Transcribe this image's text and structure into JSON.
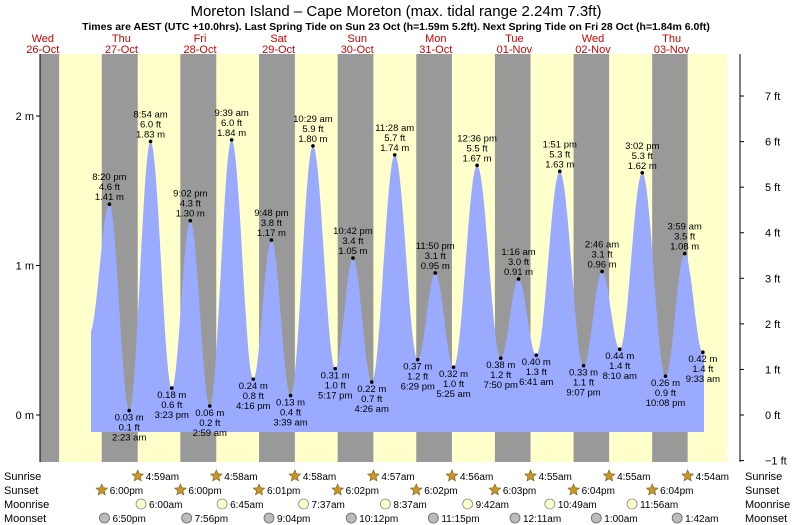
{
  "chart_data": {
    "type": "area",
    "title": "Moreton Island – Cape Moreton (max. tidal range 2.24m 7.3ft)",
    "subtitle": "Times are AEST (UTC +10.0hrs). Last Spring Tide on Sun 23 Oct (h=1.59m 5.2ft). Next Spring Tide on Fri 28 Oct (h=1.84m 6.0ft)",
    "colors": {
      "day": "#ffffcc",
      "night": "#999999",
      "tide": "#99aaff",
      "date": "#cc0000",
      "text": "#000000",
      "sun": "#c8962a",
      "moon": "#ffffcc",
      "moonset": "#bbbbbb"
    },
    "days": [
      {
        "dow": "Wed",
        "date": "26-Oct"
      },
      {
        "dow": "Thu",
        "date": "27-Oct"
      },
      {
        "dow": "Fri",
        "date": "28-Oct"
      },
      {
        "dow": "Sat",
        "date": "29-Oct"
      },
      {
        "dow": "Sun",
        "date": "30-Oct"
      },
      {
        "dow": "Mon",
        "date": "31-Oct"
      },
      {
        "dow": "Tue",
        "date": "01-Nov"
      },
      {
        "dow": "Wed",
        "date": "02-Nov"
      },
      {
        "dow": "Thu",
        "date": "03-Nov"
      }
    ],
    "y_left_ticks": [
      {
        "v": 0,
        "label": "0 m"
      },
      {
        "v": 1,
        "label": "1 m"
      },
      {
        "v": 2,
        "label": "2 m"
      }
    ],
    "y_right_ticks": [
      {
        "ft": -1,
        "label": "−1 ft"
      },
      {
        "ft": 0,
        "label": "0 ft"
      },
      {
        "ft": 1,
        "label": "1 ft"
      },
      {
        "ft": 2,
        "label": "2 ft"
      },
      {
        "ft": 3,
        "label": "3 ft"
      },
      {
        "ft": 4,
        "label": "4 ft"
      },
      {
        "ft": 5,
        "label": "5 ft"
      },
      {
        "ft": 6,
        "label": "6 ft"
      },
      {
        "ft": 7,
        "label": "7 ft"
      }
    ],
    "ylim": [
      -0.3,
      2.45
    ],
    "tides": [
      {
        "d": 0,
        "h": 20.333,
        "m": 1.41,
        "type": "high",
        "time": "8:20 pm",
        "ft": "4.6 ft",
        "mlabel": "1.41 m"
      },
      {
        "d": 1,
        "h": 2.383,
        "m": 0.03,
        "type": "low",
        "time": "2:23 am",
        "ft": "0.1 ft",
        "mlabel": "0.03 m"
      },
      {
        "d": 1,
        "h": 8.9,
        "m": 1.83,
        "type": "high",
        "time": "8:54 am",
        "ft": "6.0 ft",
        "mlabel": "1.83 m"
      },
      {
        "d": 1,
        "h": 15.383,
        "m": 0.18,
        "type": "low",
        "time": "3:23 pm",
        "ft": "0.6 ft",
        "mlabel": "0.18 m"
      },
      {
        "d": 1,
        "h": 21.033,
        "m": 1.3,
        "type": "high",
        "time": "9:02 pm",
        "ft": "4.3 ft",
        "mlabel": "1.30 m"
      },
      {
        "d": 2,
        "h": 2.983,
        "m": 0.06,
        "type": "low",
        "time": "2:59 am",
        "ft": "0.2 ft",
        "mlabel": "0.06 m"
      },
      {
        "d": 2,
        "h": 9.65,
        "m": 1.84,
        "type": "high",
        "time": "9:39 am",
        "ft": "6.0 ft",
        "mlabel": "1.84 m"
      },
      {
        "d": 2,
        "h": 16.267,
        "m": 0.24,
        "type": "low",
        "time": "4:16 pm",
        "ft": "0.8 ft",
        "mlabel": "0.24 m"
      },
      {
        "d": 2,
        "h": 21.8,
        "m": 1.17,
        "type": "high",
        "time": "9:48 pm",
        "ft": "3.8 ft",
        "mlabel": "1.17 m"
      },
      {
        "d": 3,
        "h": 3.65,
        "m": 0.13,
        "type": "low",
        "time": "3:39 am",
        "ft": "0.4 ft",
        "mlabel": "0.13 m"
      },
      {
        "d": 3,
        "h": 10.483,
        "m": 1.8,
        "type": "high",
        "time": "10:29 am",
        "ft": "5.9 ft",
        "mlabel": "1.80 m"
      },
      {
        "d": 3,
        "h": 17.283,
        "m": 0.31,
        "type": "low",
        "time": "5:17 pm",
        "ft": "1.0 ft",
        "mlabel": "0.31 m"
      },
      {
        "d": 3,
        "h": 22.7,
        "m": 1.05,
        "type": "high",
        "time": "10:42 pm",
        "ft": "3.4 ft",
        "mlabel": "1.05 m"
      },
      {
        "d": 4,
        "h": 4.433,
        "m": 0.22,
        "type": "low",
        "time": "4:26 am",
        "ft": "0.7 ft",
        "mlabel": "0.22 m"
      },
      {
        "d": 4,
        "h": 11.467,
        "m": 1.74,
        "type": "high",
        "time": "11:28 am",
        "ft": "5.7 ft",
        "mlabel": "1.74 m"
      },
      {
        "d": 4,
        "h": 18.483,
        "m": 0.37,
        "type": "low",
        "time": "6:29 pm",
        "ft": "1.2 ft",
        "mlabel": "0.37 m"
      },
      {
        "d": 4,
        "h": 23.833,
        "m": 0.95,
        "type": "high",
        "time": "11:50 pm",
        "ft": "3.1 ft",
        "mlabel": "0.95 m"
      },
      {
        "d": 5,
        "h": 5.417,
        "m": 0.32,
        "type": "low",
        "time": "5:25 am",
        "ft": "1.0 ft",
        "mlabel": "0.32 m"
      },
      {
        "d": 5,
        "h": 12.6,
        "m": 1.67,
        "type": "high",
        "time": "12:36 pm",
        "ft": "5.5 ft",
        "mlabel": "1.67 m"
      },
      {
        "d": 5,
        "h": 19.833,
        "m": 0.38,
        "type": "low",
        "time": "7:50 pm",
        "ft": "1.2 ft",
        "mlabel": "0.38 m"
      },
      {
        "d": 6,
        "h": 1.267,
        "m": 0.91,
        "type": "high",
        "time": "1:16 am",
        "ft": "3.0 ft",
        "mlabel": "0.91 m"
      },
      {
        "d": 6,
        "h": 6.683,
        "m": 0.4,
        "type": "low",
        "time": "6:41 am",
        "ft": "1.3 ft",
        "mlabel": "0.40 m"
      },
      {
        "d": 6,
        "h": 13.85,
        "m": 1.63,
        "type": "high",
        "time": "1:51 pm",
        "ft": "5.3 ft",
        "mlabel": "1.63 m"
      },
      {
        "d": 6,
        "h": 21.117,
        "m": 0.33,
        "type": "low",
        "time": "9:07 pm",
        "ft": "1.1 ft",
        "mlabel": "0.33 m"
      },
      {
        "d": 7,
        "h": 2.767,
        "m": 0.96,
        "type": "high",
        "time": "2:46 am",
        "ft": "3.1 ft",
        "mlabel": "0.96 m"
      },
      {
        "d": 7,
        "h": 8.167,
        "m": 0.44,
        "type": "low",
        "time": "8:10 am",
        "ft": "1.4 ft",
        "mlabel": "0.44 m"
      },
      {
        "d": 7,
        "h": 15.033,
        "m": 1.62,
        "type": "high",
        "time": "3:02 pm",
        "ft": "5.3 ft",
        "mlabel": "1.62 m"
      },
      {
        "d": 7,
        "h": 22.133,
        "m": 0.26,
        "type": "low",
        "time": "10:08 pm",
        "ft": "0.9 ft",
        "mlabel": "0.26 m"
      },
      {
        "d": 8,
        "h": 3.983,
        "m": 1.08,
        "type": "high",
        "time": "3:59 am",
        "ft": "3.5 ft",
        "mlabel": "1.08 m"
      },
      {
        "d": 8,
        "h": 9.55,
        "m": 0.42,
        "type": "low",
        "time": "9:33 am",
        "ft": "1.4 ft",
        "mlabel": "0.42 m"
      }
    ],
    "row_labels": {
      "sunrise": "Sunrise",
      "sunset": "Sunset",
      "moonrise": "Moonrise",
      "moonset": "Moonset"
    },
    "sunrise": [
      {
        "d": 1,
        "h": 4.983,
        "label": "4:59am"
      },
      {
        "d": 2,
        "h": 4.967,
        "label": "4:58am"
      },
      {
        "d": 3,
        "h": 4.967,
        "label": "4:58am"
      },
      {
        "d": 4,
        "h": 4.95,
        "label": "4:57am"
      },
      {
        "d": 5,
        "h": 4.933,
        "label": "4:56am"
      },
      {
        "d": 6,
        "h": 4.917,
        "label": "4:55am"
      },
      {
        "d": 7,
        "h": 4.917,
        "label": "4:55am"
      },
      {
        "d": 8,
        "h": 4.9,
        "label": "4:54am"
      }
    ],
    "sunset": [
      {
        "d": 0,
        "h": 18.0,
        "label": "6:00pm"
      },
      {
        "d": 1,
        "h": 18.0,
        "label": "6:00pm"
      },
      {
        "d": 2,
        "h": 18.017,
        "label": "6:01pm"
      },
      {
        "d": 3,
        "h": 18.033,
        "label": "6:02pm"
      },
      {
        "d": 4,
        "h": 18.033,
        "label": "6:02pm"
      },
      {
        "d": 5,
        "h": 18.05,
        "label": "6:03pm"
      },
      {
        "d": 6,
        "h": 18.067,
        "label": "6:04pm"
      },
      {
        "d": 7,
        "h": 18.067,
        "label": "6:04pm"
      }
    ],
    "moonrise": [
      {
        "d": 1,
        "h": 6.0,
        "label": "6:00am"
      },
      {
        "d": 2,
        "h": 6.75,
        "label": "6:45am"
      },
      {
        "d": 3,
        "h": 7.617,
        "label": "7:37am"
      },
      {
        "d": 4,
        "h": 8.617,
        "label": "8:37am"
      },
      {
        "d": 5,
        "h": 9.7,
        "label": "9:42am"
      },
      {
        "d": 6,
        "h": 10.817,
        "label": "10:49am"
      },
      {
        "d": 7,
        "h": 11.933,
        "label": "11:56am"
      }
    ],
    "moonset": [
      {
        "d": 0,
        "h": 18.833,
        "label": "6:50pm"
      },
      {
        "d": 1,
        "h": 19.933,
        "label": "7:56pm"
      },
      {
        "d": 2,
        "h": 21.067,
        "label": "9:04pm"
      },
      {
        "d": 3,
        "h": 22.2,
        "label": "10:12pm"
      },
      {
        "d": 4,
        "h": 23.25,
        "label": "11:15pm"
      },
      {
        "d": 6,
        "h": 0.183,
        "label": "12:11am"
      },
      {
        "d": 7,
        "h": 1.0,
        "label": "1:00am"
      },
      {
        "d": 8,
        "h": 1.7,
        "label": "1:42am"
      }
    ]
  }
}
